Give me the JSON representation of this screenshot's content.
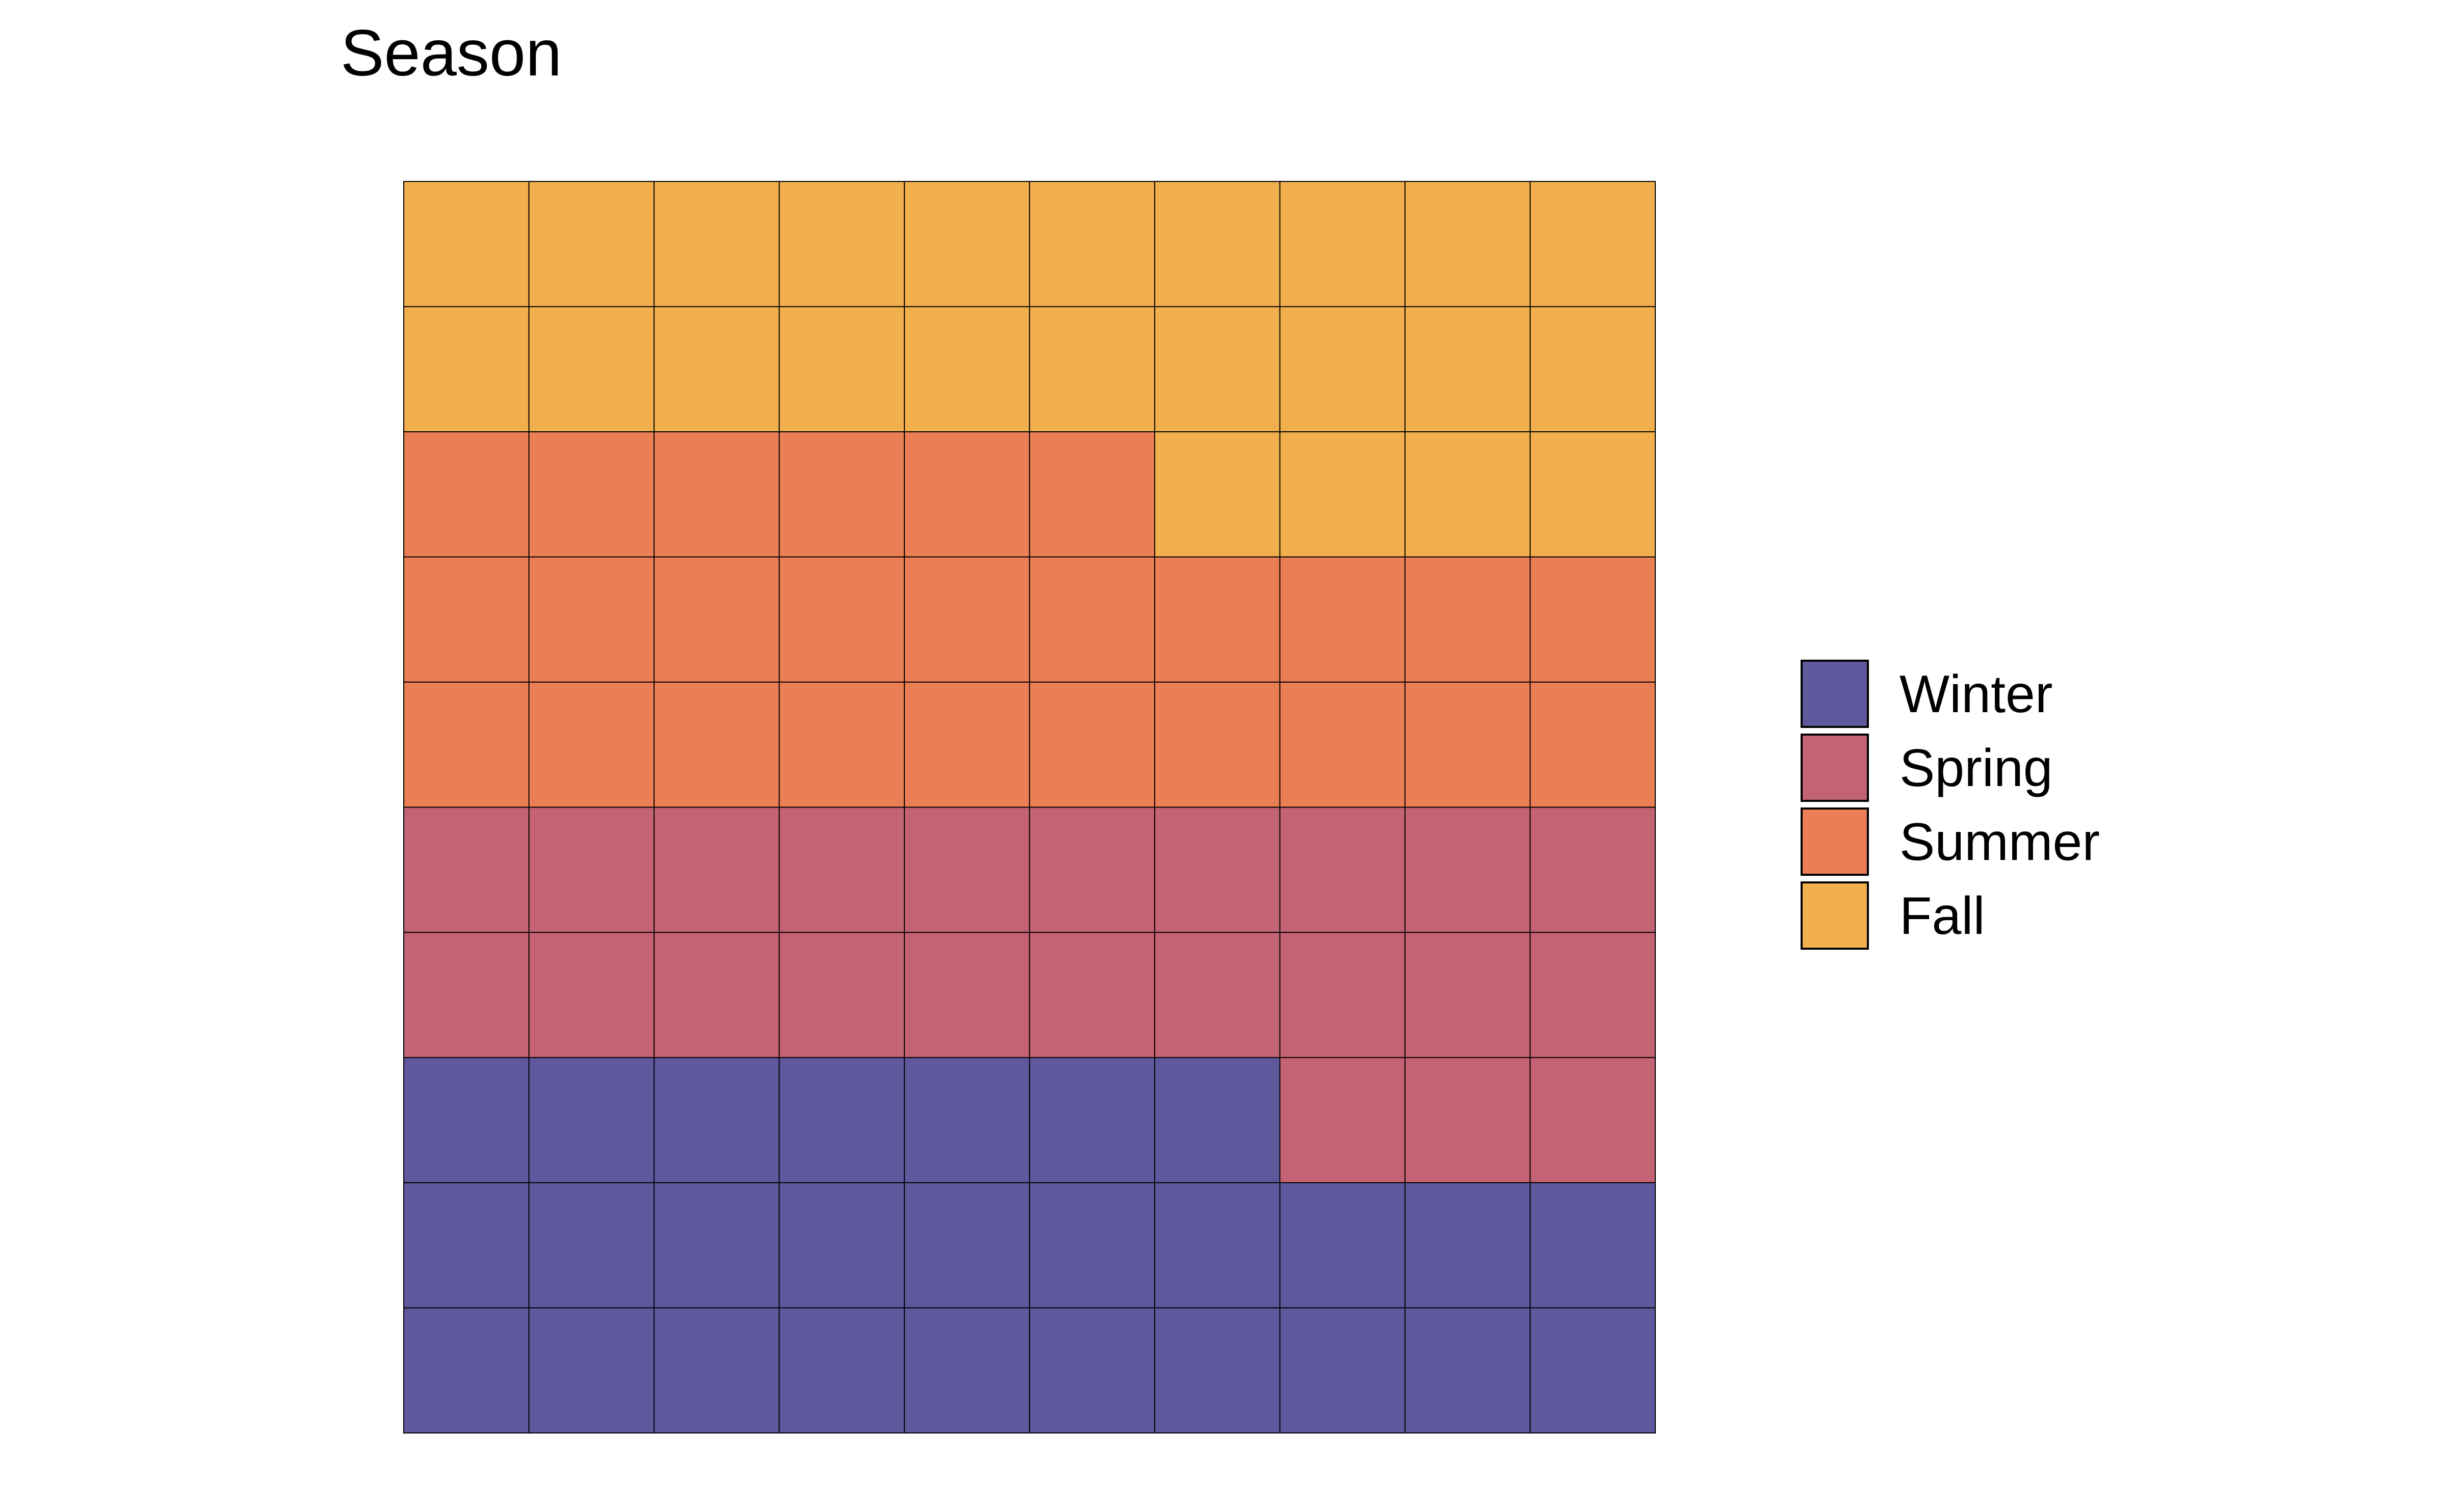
{
  "chart_data": {
    "type": "waffle",
    "title": "Season",
    "xlabel": "",
    "ylabel": "",
    "grid_rows": 10,
    "grid_cols": 10,
    "fill_order": "row-wise from bottom-left",
    "grid": false,
    "legend_position": "right",
    "categories": [
      "Winter",
      "Spring",
      "Summer",
      "Fall"
    ],
    "values": [
      27,
      23,
      26,
      24
    ],
    "colors": [
      "#5f589d",
      "#c46374",
      "#ea7e55",
      "#f1b04d"
    ]
  }
}
